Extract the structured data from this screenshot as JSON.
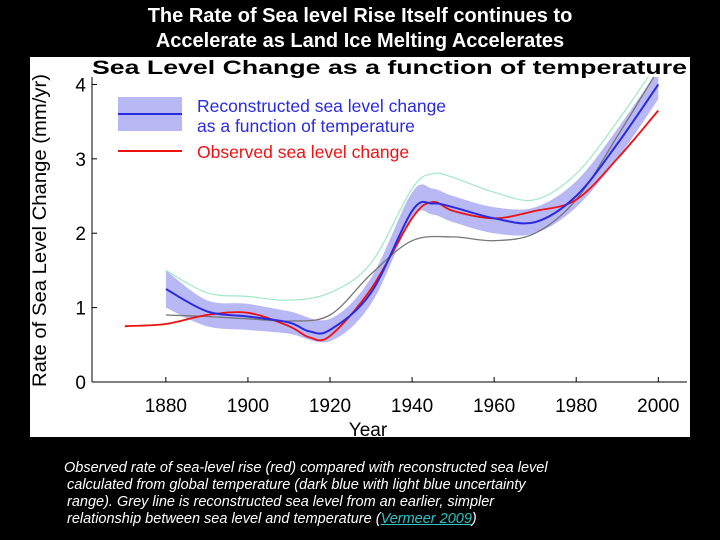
{
  "slide": {
    "title_line1": "The Rate of Sea level Rise Itself continues to",
    "title_line2": "Accelerate as Land Ice Melting Accelerates"
  },
  "caption": {
    "line1": "Observed rate of sea-level rise (red) compared with reconstructed sea level",
    "line2": "calculated from global temperature (dark blue with light blue uncertainty",
    "line3": "range). Grey line is reconstructed sea level from an earlier, simpler",
    "line4_prefix": "relationship between sea level and temperature (",
    "link_text": "Vermeer 2009",
    "line4_suffix": ")"
  },
  "colors": {
    "background": "#000000",
    "reconstructed": "#2a2ae0",
    "uncertainty": "#b8b8f4",
    "observed": "#ee1111",
    "grey": "#777777",
    "upper": "#9fe8c8",
    "link": "#2ec4c4"
  },
  "chart_data": {
    "type": "line",
    "title": "Sea Level Change as a function of temperature",
    "xlabel": "Year",
    "ylabel": "Rate of Sea Level Change (mm/yr)",
    "xlim": [
      1862,
      2007
    ],
    "ylim": [
      0,
      4.1
    ],
    "xticks": [
      1880,
      1900,
      1920,
      1940,
      1960,
      1980,
      2000
    ],
    "yticks": [
      0,
      1,
      2,
      3,
      4
    ],
    "grid": false,
    "legend": {
      "position": "top-left",
      "entries": [
        {
          "label": "Reconstructed sea level change\nas a function of temperature",
          "series": "Reconstructed"
        },
        {
          "label": "Observed sea level change",
          "series": "Observed"
        }
      ]
    },
    "band": {
      "x": [
        1880,
        1890,
        1900,
        1910,
        1920,
        1930,
        1940,
        1945,
        1950,
        1960,
        1970,
        1980,
        1990,
        2000
      ],
      "lower": [
        1.0,
        0.75,
        0.7,
        0.65,
        0.55,
        1.05,
        2.2,
        2.25,
        2.15,
        2.0,
        2.0,
        2.35,
        3.0,
        3.8
      ],
      "upper": [
        1.5,
        1.1,
        1.05,
        0.95,
        0.85,
        1.4,
        2.55,
        2.6,
        2.5,
        2.35,
        2.35,
        2.7,
        3.4,
        4.2
      ]
    },
    "series": [
      {
        "name": "Reconstructed",
        "x": [
          1880,
          1890,
          1900,
          1910,
          1915,
          1920,
          1930,
          1940,
          1945,
          1950,
          1960,
          1970,
          1980,
          1990,
          2000
        ],
        "y": [
          1.25,
          0.95,
          0.88,
          0.8,
          0.68,
          0.7,
          1.2,
          2.3,
          2.4,
          2.35,
          2.2,
          2.15,
          2.5,
          3.2,
          4.0
        ]
      },
      {
        "name": "Observed",
        "x": [
          1870,
          1880,
          1890,
          1900,
          1910,
          1915,
          1920,
          1930,
          1940,
          1945,
          1950,
          1960,
          1970,
          1980,
          1990,
          2000
        ],
        "y": [
          0.75,
          0.78,
          0.9,
          0.93,
          0.75,
          0.6,
          0.62,
          1.25,
          2.2,
          2.42,
          2.3,
          2.2,
          2.3,
          2.45,
          3.0,
          3.65
        ]
      },
      {
        "name": "Grey",
        "x": [
          1880,
          1890,
          1900,
          1910,
          1920,
          1930,
          1940,
          1950,
          1960,
          1970,
          1980,
          1990,
          2000
        ],
        "y": [
          0.9,
          0.88,
          0.85,
          0.82,
          0.9,
          1.45,
          1.9,
          1.95,
          1.9,
          2.0,
          2.45,
          3.3,
          4.2
        ]
      },
      {
        "name": "Upper",
        "x": [
          1880,
          1890,
          1900,
          1910,
          1920,
          1930,
          1940,
          1945,
          1950,
          1960,
          1970,
          1980,
          1990,
          2000
        ],
        "y": [
          1.5,
          1.2,
          1.15,
          1.1,
          1.2,
          1.6,
          2.6,
          2.8,
          2.75,
          2.55,
          2.45,
          2.8,
          3.5,
          4.3
        ]
      }
    ]
  }
}
